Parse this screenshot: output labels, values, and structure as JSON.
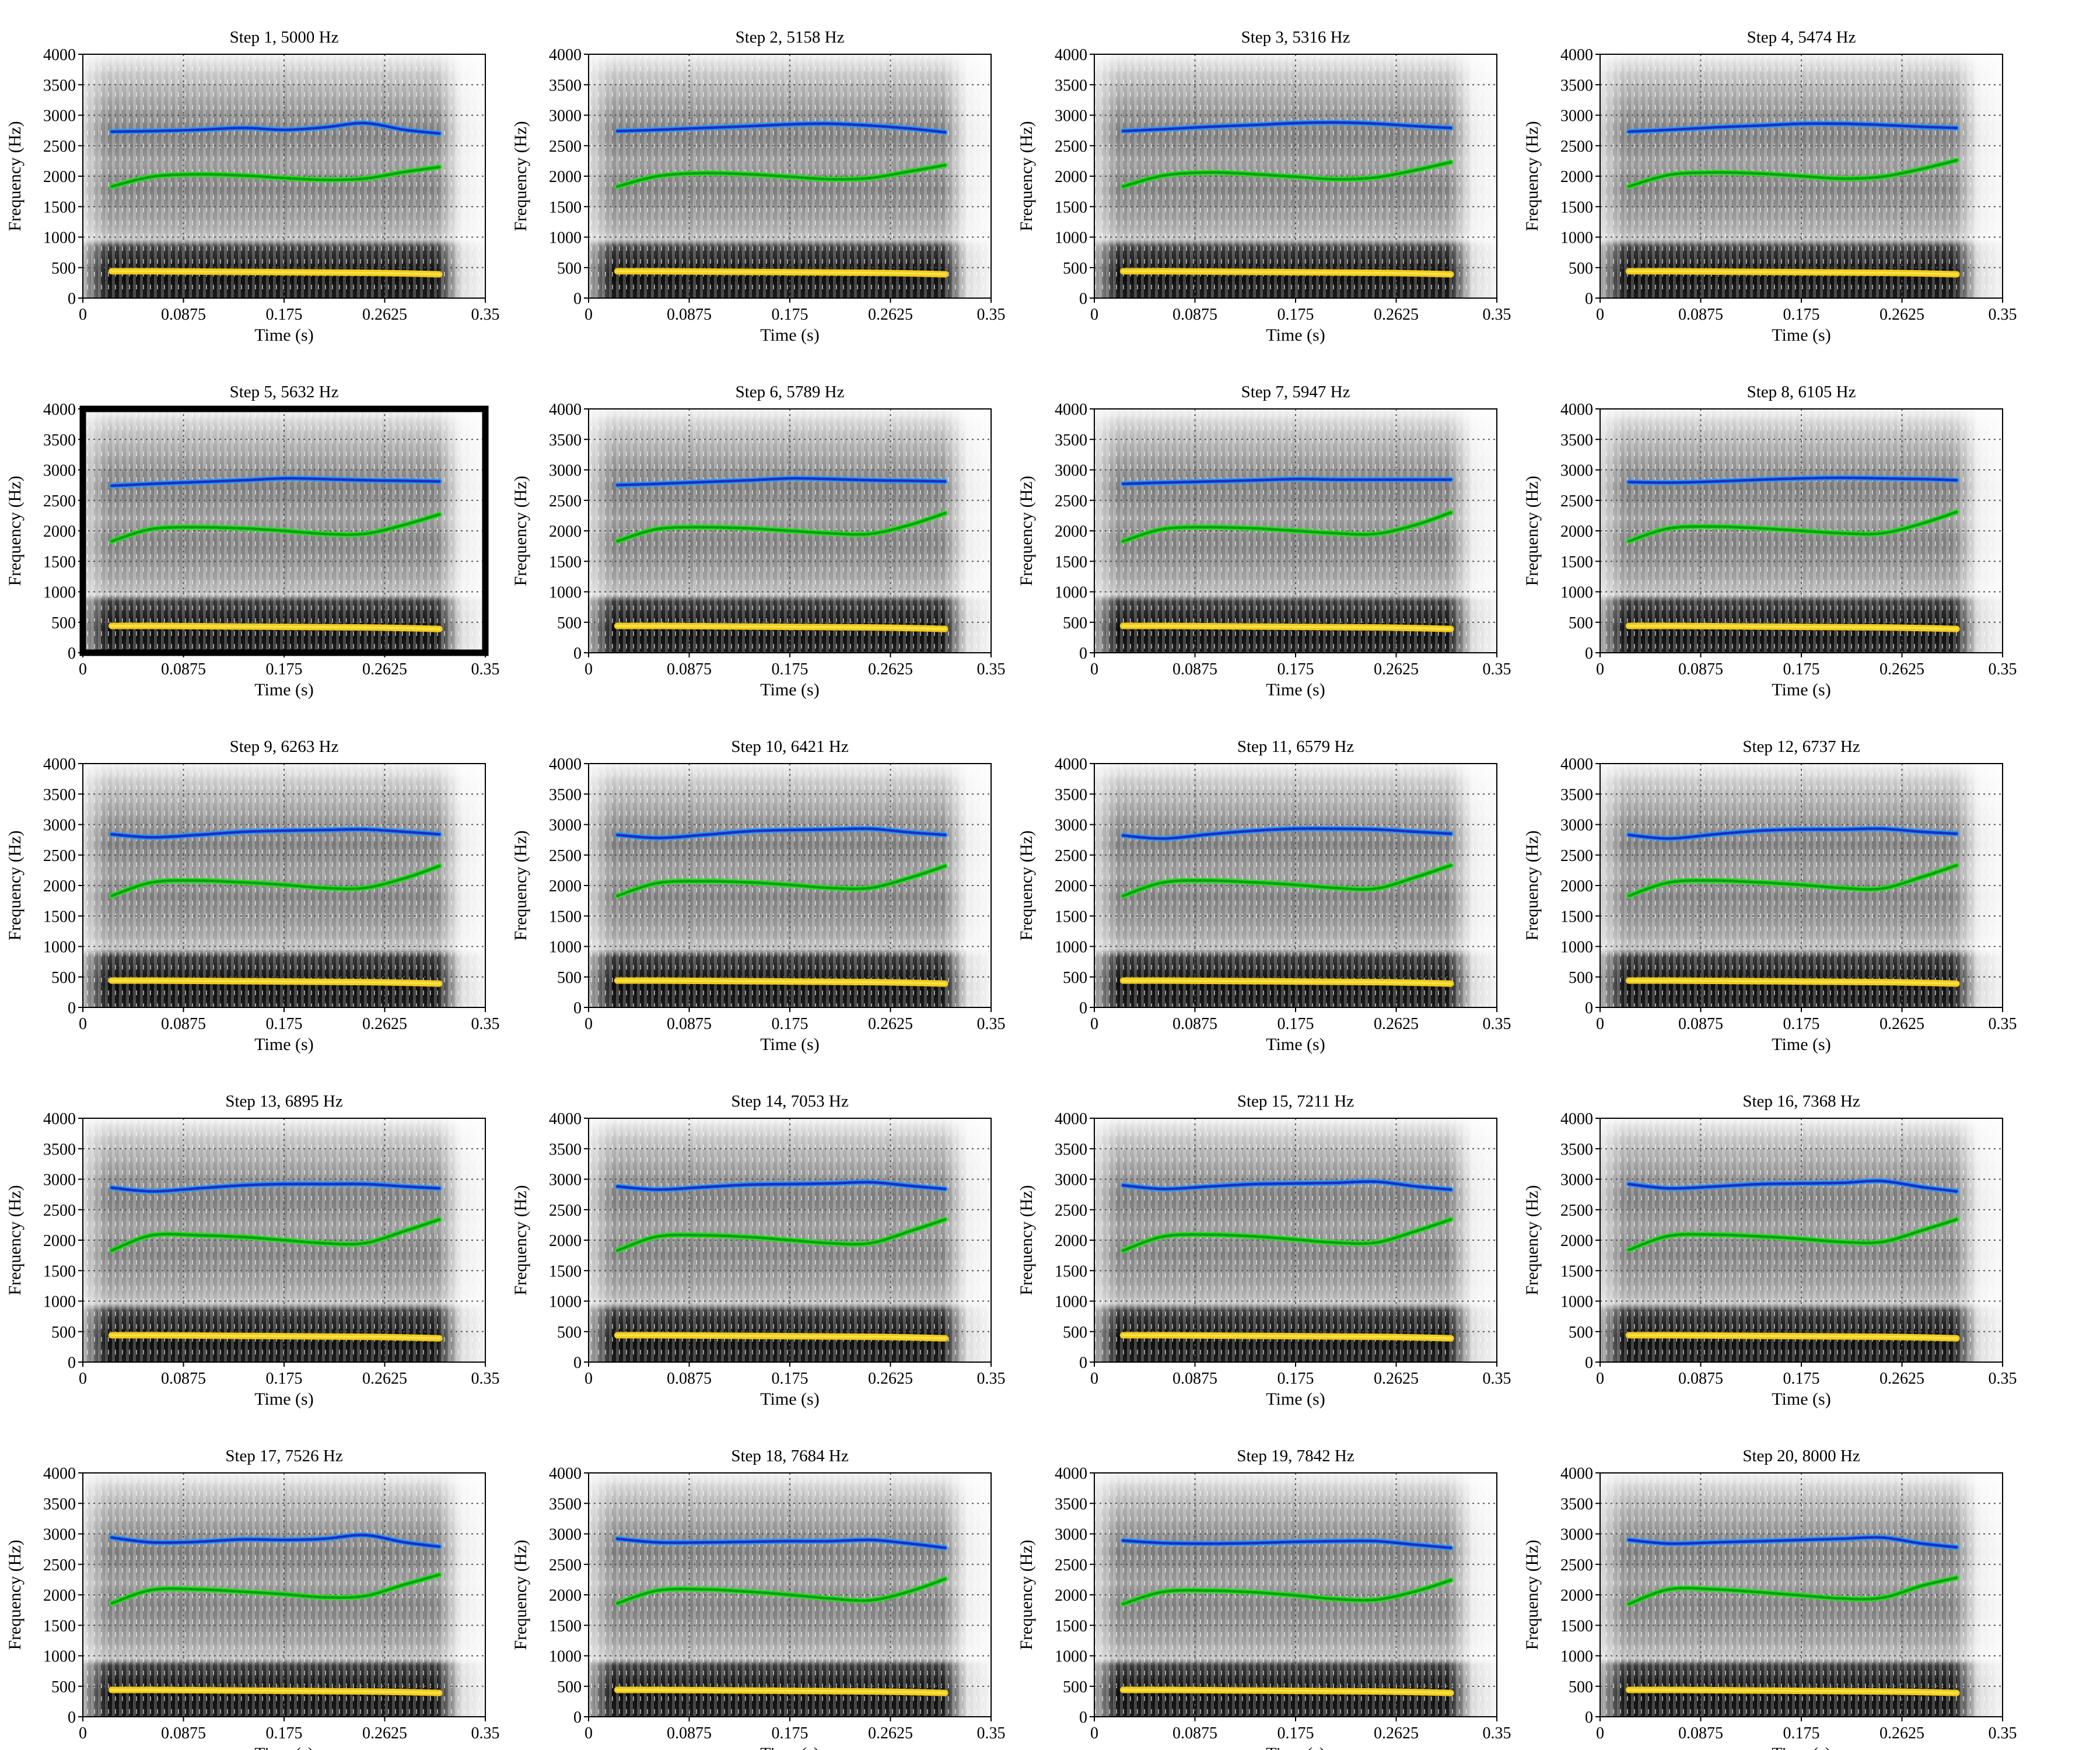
{
  "figure": {
    "rows": 5,
    "cols": 4,
    "highlighted_panel": 5
  },
  "colors": {
    "f1_track": "#f2cc1a",
    "f1_mean": "#f7e24a",
    "f2_track": "#2bdb26",
    "f2_mean": "#0aa010",
    "f3_track": "#2a96f0",
    "f3_mean": "#1a2fc8",
    "grid": "#555555"
  },
  "axes": {
    "xlabel": "Time (s)",
    "ylabel": "Frequency (Hz)",
    "xlim": [
      0,
      0.35
    ],
    "ylim": [
      0,
      4000
    ],
    "xticks": [
      0,
      0.0875,
      0.175,
      0.2625,
      0.35
    ],
    "xtick_labels": [
      "0",
      "0.0875",
      "0.175",
      "0.2625",
      "0.35"
    ],
    "yticks": [
      0,
      500,
      1000,
      1500,
      2000,
      2500,
      3000,
      3500,
      4000
    ],
    "ytick_labels": [
      "0",
      "500",
      "1000",
      "1500",
      "2000",
      "2500",
      "3000",
      "3500",
      "4000"
    ],
    "grid": "dotted",
    "background": "grayscale spectrogram"
  },
  "chart_data": [
    {
      "type": "line",
      "title": "Step 1, 5000 Hz",
      "x": [
        0.025,
        0.06,
        0.1,
        0.14,
        0.175,
        0.21,
        0.245,
        0.28,
        0.31
      ],
      "series": [
        {
          "values": [
            440,
            440,
            435,
            430,
            425,
            420,
            415,
            405,
            390
          ]
        },
        {
          "values": [
            1830,
            1990,
            2030,
            2010,
            1970,
            1940,
            1960,
            2070,
            2150
          ]
        },
        {
          "values": [
            2730,
            2740,
            2760,
            2790,
            2760,
            2800,
            2870,
            2760,
            2700
          ]
        }
      ]
    },
    {
      "type": "line",
      "title": "Step 2, 5158 Hz",
      "x": [
        0.025,
        0.06,
        0.1,
        0.14,
        0.175,
        0.21,
        0.245,
        0.28,
        0.31
      ],
      "series": [
        {
          "values": [
            440,
            440,
            435,
            430,
            425,
            420,
            415,
            405,
            390
          ]
        },
        {
          "values": [
            1830,
            2000,
            2050,
            2030,
            1990,
            1950,
            1970,
            2080,
            2180
          ]
        },
        {
          "values": [
            2740,
            2760,
            2790,
            2820,
            2850,
            2860,
            2830,
            2780,
            2720
          ]
        }
      ]
    },
    {
      "type": "line",
      "title": "Step 3, 5316 Hz",
      "x": [
        0.025,
        0.06,
        0.1,
        0.14,
        0.175,
        0.21,
        0.245,
        0.28,
        0.31
      ],
      "series": [
        {
          "values": [
            440,
            440,
            435,
            430,
            425,
            420,
            415,
            405,
            390
          ]
        },
        {
          "values": [
            1830,
            2010,
            2060,
            2030,
            1990,
            1950,
            1980,
            2100,
            2230
          ]
        },
        {
          "values": [
            2740,
            2770,
            2810,
            2840,
            2870,
            2880,
            2860,
            2820,
            2790
          ]
        }
      ]
    },
    {
      "type": "line",
      "title": "Step 4, 5474 Hz",
      "x": [
        0.025,
        0.06,
        0.1,
        0.14,
        0.175,
        0.21,
        0.245,
        0.28,
        0.31
      ],
      "series": [
        {
          "values": [
            440,
            440,
            435,
            430,
            425,
            420,
            415,
            405,
            390
          ]
        },
        {
          "values": [
            1830,
            2020,
            2060,
            2040,
            2000,
            1960,
            1990,
            2120,
            2260
          ]
        },
        {
          "values": [
            2730,
            2760,
            2800,
            2830,
            2860,
            2860,
            2840,
            2810,
            2790
          ]
        }
      ]
    },
    {
      "type": "line",
      "title": "Step 5, 5632 Hz",
      "x": [
        0.025,
        0.06,
        0.1,
        0.14,
        0.175,
        0.21,
        0.245,
        0.28,
        0.31
      ],
      "series": [
        {
          "values": [
            440,
            440,
            435,
            430,
            425,
            420,
            415,
            405,
            390
          ]
        },
        {
          "values": [
            1830,
            2030,
            2060,
            2040,
            2000,
            1950,
            1950,
            2100,
            2270
          ]
        },
        {
          "values": [
            2740,
            2770,
            2800,
            2830,
            2860,
            2850,
            2830,
            2820,
            2810
          ]
        }
      ]
    },
    {
      "type": "line",
      "title": "Step 6, 5789 Hz",
      "x": [
        0.025,
        0.06,
        0.1,
        0.14,
        0.175,
        0.21,
        0.245,
        0.28,
        0.31
      ],
      "series": [
        {
          "values": [
            440,
            440,
            435,
            430,
            425,
            420,
            415,
            405,
            390
          ]
        },
        {
          "values": [
            1830,
            2030,
            2060,
            2040,
            2000,
            1960,
            1950,
            2100,
            2290
          ]
        },
        {
          "values": [
            2750,
            2770,
            2800,
            2830,
            2860,
            2850,
            2830,
            2820,
            2810
          ]
        }
      ]
    },
    {
      "type": "line",
      "title": "Step 7, 5947 Hz",
      "x": [
        0.025,
        0.06,
        0.1,
        0.14,
        0.175,
        0.21,
        0.245,
        0.28,
        0.31
      ],
      "series": [
        {
          "values": [
            440,
            440,
            435,
            430,
            425,
            420,
            415,
            405,
            390
          ]
        },
        {
          "values": [
            1830,
            2030,
            2060,
            2040,
            2000,
            1960,
            1950,
            2100,
            2300
          ]
        },
        {
          "values": [
            2770,
            2790,
            2810,
            2830,
            2850,
            2840,
            2840,
            2840,
            2840
          ]
        }
      ]
    },
    {
      "type": "line",
      "title": "Step 8, 6105 Hz",
      "x": [
        0.025,
        0.06,
        0.1,
        0.14,
        0.175,
        0.21,
        0.245,
        0.28,
        0.31
      ],
      "series": [
        {
          "values": [
            440,
            440,
            435,
            430,
            425,
            420,
            415,
            405,
            390
          ]
        },
        {
          "values": [
            1830,
            2040,
            2070,
            2040,
            2000,
            1960,
            1960,
            2120,
            2310
          ]
        },
        {
          "values": [
            2800,
            2790,
            2810,
            2840,
            2860,
            2870,
            2860,
            2850,
            2830
          ]
        }
      ]
    },
    {
      "type": "line",
      "title": "Step 9, 6263 Hz",
      "x": [
        0.025,
        0.06,
        0.1,
        0.14,
        0.175,
        0.21,
        0.245,
        0.28,
        0.31
      ],
      "series": [
        {
          "values": [
            440,
            440,
            435,
            430,
            425,
            420,
            415,
            405,
            390
          ]
        },
        {
          "values": [
            1830,
            2050,
            2080,
            2050,
            2010,
            1960,
            1960,
            2120,
            2320
          ]
        },
        {
          "values": [
            2840,
            2790,
            2830,
            2880,
            2900,
            2910,
            2920,
            2880,
            2840
          ]
        }
      ]
    },
    {
      "type": "line",
      "title": "Step 10, 6421 Hz",
      "x": [
        0.025,
        0.06,
        0.1,
        0.14,
        0.175,
        0.21,
        0.245,
        0.28,
        0.31
      ],
      "series": [
        {
          "values": [
            440,
            440,
            435,
            430,
            425,
            420,
            415,
            405,
            390
          ]
        },
        {
          "values": [
            1830,
            2040,
            2070,
            2050,
            2010,
            1960,
            1960,
            2130,
            2320
          ]
        },
        {
          "values": [
            2830,
            2780,
            2830,
            2890,
            2910,
            2920,
            2930,
            2870,
            2830
          ]
        }
      ]
    },
    {
      "type": "line",
      "title": "Step 11, 6579 Hz",
      "x": [
        0.025,
        0.06,
        0.1,
        0.14,
        0.175,
        0.21,
        0.245,
        0.28,
        0.31
      ],
      "series": [
        {
          "values": [
            440,
            440,
            435,
            430,
            425,
            420,
            415,
            405,
            390
          ]
        },
        {
          "values": [
            1830,
            2050,
            2080,
            2050,
            2010,
            1960,
            1950,
            2140,
            2330
          ]
        },
        {
          "values": [
            2820,
            2770,
            2840,
            2900,
            2930,
            2930,
            2920,
            2880,
            2850
          ]
        }
      ]
    },
    {
      "type": "line",
      "title": "Step 12, 6737 Hz",
      "x": [
        0.025,
        0.06,
        0.1,
        0.14,
        0.175,
        0.21,
        0.245,
        0.28,
        0.31
      ],
      "series": [
        {
          "values": [
            440,
            440,
            435,
            430,
            425,
            420,
            415,
            405,
            390
          ]
        },
        {
          "values": [
            1830,
            2050,
            2080,
            2050,
            2010,
            1960,
            1950,
            2140,
            2330
          ]
        },
        {
          "values": [
            2830,
            2770,
            2840,
            2900,
            2920,
            2920,
            2930,
            2880,
            2850
          ]
        }
      ]
    },
    {
      "type": "line",
      "title": "Step 13, 6895 Hz",
      "x": [
        0.025,
        0.06,
        0.1,
        0.14,
        0.175,
        0.21,
        0.245,
        0.28,
        0.31
      ],
      "series": [
        {
          "values": [
            440,
            440,
            435,
            430,
            425,
            420,
            415,
            405,
            390
          ]
        },
        {
          "values": [
            1830,
            2080,
            2080,
            2050,
            2000,
            1950,
            1950,
            2150,
            2340
          ]
        },
        {
          "values": [
            2860,
            2800,
            2850,
            2900,
            2920,
            2920,
            2920,
            2880,
            2850
          ]
        }
      ]
    },
    {
      "type": "line",
      "title": "Step 14, 7053 Hz",
      "x": [
        0.025,
        0.06,
        0.1,
        0.14,
        0.175,
        0.21,
        0.245,
        0.28,
        0.31
      ],
      "series": [
        {
          "values": [
            440,
            440,
            435,
            430,
            425,
            420,
            415,
            405,
            390
          ]
        },
        {
          "values": [
            1830,
            2060,
            2080,
            2050,
            2000,
            1950,
            1950,
            2150,
            2340
          ]
        },
        {
          "values": [
            2880,
            2830,
            2870,
            2910,
            2920,
            2930,
            2950,
            2890,
            2840
          ]
        }
      ]
    },
    {
      "type": "line",
      "title": "Step 15, 7211 Hz",
      "x": [
        0.025,
        0.06,
        0.1,
        0.14,
        0.175,
        0.21,
        0.245,
        0.28,
        0.31
      ],
      "series": [
        {
          "values": [
            440,
            440,
            435,
            430,
            425,
            420,
            415,
            405,
            390
          ]
        },
        {
          "values": [
            1830,
            2060,
            2090,
            2060,
            2010,
            1960,
            1960,
            2150,
            2340
          ]
        },
        {
          "values": [
            2900,
            2840,
            2880,
            2920,
            2930,
            2940,
            2960,
            2880,
            2830
          ]
        }
      ]
    },
    {
      "type": "line",
      "title": "Step 16, 7368 Hz",
      "x": [
        0.025,
        0.06,
        0.1,
        0.14,
        0.175,
        0.21,
        0.245,
        0.28,
        0.31
      ],
      "series": [
        {
          "values": [
            440,
            440,
            435,
            430,
            425,
            420,
            415,
            405,
            390
          ]
        },
        {
          "values": [
            1840,
            2070,
            2090,
            2060,
            2020,
            1970,
            1970,
            2160,
            2340
          ]
        },
        {
          "values": [
            2920,
            2850,
            2880,
            2920,
            2930,
            2940,
            2970,
            2870,
            2800
          ]
        }
      ]
    },
    {
      "type": "line",
      "title": "Step 17, 7526 Hz",
      "x": [
        0.025,
        0.06,
        0.1,
        0.14,
        0.175,
        0.21,
        0.245,
        0.28,
        0.31
      ],
      "series": [
        {
          "values": [
            440,
            440,
            435,
            430,
            425,
            420,
            415,
            405,
            390
          ]
        },
        {
          "values": [
            1860,
            2080,
            2090,
            2050,
            2010,
            1960,
            1980,
            2170,
            2330
          ]
        },
        {
          "values": [
            2940,
            2860,
            2870,
            2910,
            2900,
            2920,
            2980,
            2860,
            2790
          ]
        }
      ]
    },
    {
      "type": "line",
      "title": "Step 18, 7684 Hz",
      "x": [
        0.025,
        0.06,
        0.1,
        0.14,
        0.175,
        0.21,
        0.245,
        0.28,
        0.31
      ],
      "series": [
        {
          "values": [
            440,
            440,
            435,
            430,
            425,
            420,
            415,
            405,
            390
          ]
        },
        {
          "values": [
            1860,
            2070,
            2090,
            2050,
            2000,
            1940,
            1910,
            2060,
            2260
          ]
        },
        {
          "values": [
            2920,
            2860,
            2860,
            2870,
            2880,
            2880,
            2900,
            2840,
            2770
          ]
        }
      ]
    },
    {
      "type": "line",
      "title": "Step 19, 7842 Hz",
      "x": [
        0.025,
        0.06,
        0.1,
        0.14,
        0.175,
        0.21,
        0.245,
        0.28,
        0.31
      ],
      "series": [
        {
          "values": [
            440,
            440,
            435,
            430,
            425,
            420,
            415,
            405,
            390
          ]
        },
        {
          "values": [
            1850,
            2050,
            2070,
            2040,
            1990,
            1930,
            1920,
            2060,
            2240
          ]
        },
        {
          "values": [
            2890,
            2850,
            2840,
            2850,
            2870,
            2880,
            2880,
            2820,
            2770
          ]
        }
      ]
    },
    {
      "type": "line",
      "title": "Step 20, 8000 Hz",
      "x": [
        0.025,
        0.06,
        0.1,
        0.14,
        0.175,
        0.21,
        0.245,
        0.28,
        0.31
      ],
      "series": [
        {
          "values": [
            440,
            440,
            435,
            430,
            425,
            420,
            415,
            405,
            390
          ]
        },
        {
          "values": [
            1850,
            2090,
            2090,
            2040,
            1990,
            1940,
            1950,
            2150,
            2280
          ]
        },
        {
          "values": [
            2900,
            2840,
            2860,
            2880,
            2900,
            2920,
            2940,
            2840,
            2780
          ]
        }
      ]
    }
  ]
}
